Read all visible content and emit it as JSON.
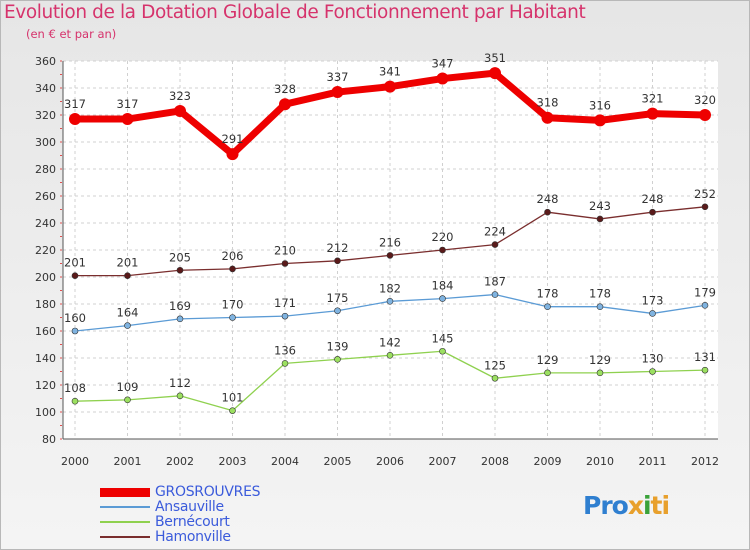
{
  "title": "Evolution de la Dotation Globale de Fonctionnement par Habitant",
  "subtitle": "(en € et par an)",
  "logo": {
    "p1": "Pro",
    "p2": "x",
    "p3": "i",
    "p4": "ti"
  },
  "chart_data": {
    "type": "line",
    "x": [
      "2000",
      "2001",
      "2002",
      "2003",
      "2004",
      "2005",
      "2006",
      "2007",
      "2008",
      "2009",
      "2010",
      "2011",
      "2012"
    ],
    "ylim": [
      80,
      360
    ],
    "yticks": [
      80,
      100,
      120,
      140,
      160,
      180,
      200,
      220,
      240,
      260,
      280,
      300,
      320,
      340,
      360
    ],
    "grid": true,
    "legend_position": "bottom-left",
    "series": [
      {
        "name": "GROSROUVRES",
        "color": "#ee0000",
        "marker": "#ee0000",
        "values": [
          317,
          317,
          323,
          291,
          328,
          337,
          341,
          347,
          351,
          318,
          316,
          321,
          320
        ]
      },
      {
        "name": "Ansauville",
        "color": "#5b9bd5",
        "marker": "#7fb3e0",
        "values": [
          160,
          164,
          169,
          170,
          171,
          175,
          182,
          184,
          187,
          178,
          178,
          173,
          179
        ]
      },
      {
        "name": "Bernécourt",
        "color": "#8fd14f",
        "marker": "#9be060",
        "values": [
          108,
          109,
          112,
          101,
          136,
          139,
          142,
          145,
          125,
          129,
          129,
          130,
          131
        ]
      },
      {
        "name": "Hamonville",
        "color": "#7a2e2e",
        "marker": "#5a1a1a",
        "values": [
          201,
          201,
          205,
          206,
          210,
          212,
          216,
          220,
          224,
          248,
          243,
          248,
          252
        ]
      }
    ]
  }
}
